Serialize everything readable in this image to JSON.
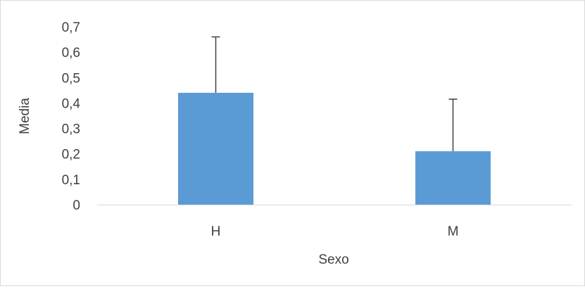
{
  "chart_data": {
    "type": "bar",
    "categories": [
      "H",
      "M"
    ],
    "values": [
      0.44,
      0.21
    ],
    "error_bars": [
      0.22,
      0.205
    ],
    "xlabel": "Sexo",
    "ylabel": "Media",
    "ylim": [
      0,
      0.7
    ],
    "y_ticks": [
      "0",
      "0,1",
      "0,2",
      "0,3",
      "0,4",
      "0,5",
      "0,6",
      "0,7"
    ],
    "grid": false,
    "legend": "none",
    "bar_color": "#5b9bd5",
    "error_bar_color": "#404040",
    "axis_color": "#d9d9d9"
  }
}
